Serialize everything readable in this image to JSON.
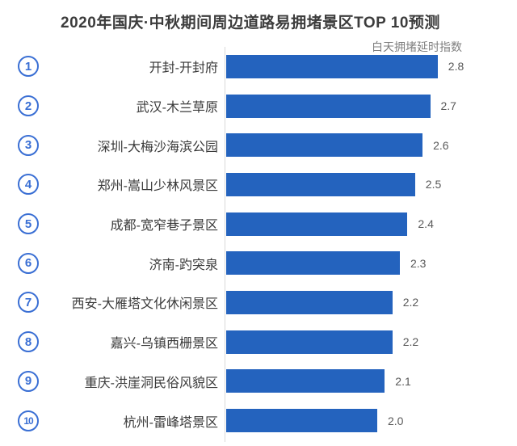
{
  "header": {
    "title": "2020年国庆·中秋期间周边道路易拥堵景区TOP 10预测",
    "value_axis_label": "白天拥堵延时指数"
  },
  "colors": {
    "bar": "#2463be",
    "badge": "#3a6fd4",
    "title_text": "#3c3c3c",
    "label_text": "#3a3a3a",
    "value_text": "#595959",
    "subtitle_text": "#7f7f7f",
    "axis_line": "#d9d9d9"
  },
  "chart_data": {
    "type": "bar",
    "orientation": "horizontal",
    "title": "2020年国庆·中秋期间周边道路易拥堵景区TOP 10预测",
    "value_axis_label": "白天拥堵延时指数",
    "ranks": [
      "1",
      "2",
      "3",
      "4",
      "5",
      "6",
      "7",
      "8",
      "9",
      "10"
    ],
    "categories": [
      "开封-开封府",
      "武汉-木兰草原",
      "深圳-大梅沙海滨公园",
      "郑州-嵩山少林风景区",
      "成都-宽窄巷子景区",
      "济南-趵突泉",
      "西安-大雁塔文化休闲景区",
      "嘉兴-乌镇西栅景区",
      "重庆-洪崖洞民俗风貌区",
      "杭州-雷峰塔景区"
    ],
    "values": [
      2.8,
      2.7,
      2.6,
      2.5,
      2.4,
      2.3,
      2.2,
      2.2,
      2.1,
      2.0
    ],
    "value_decimals": 1,
    "xlim": [
      0,
      3
    ],
    "grid": false,
    "legend": false,
    "data_labels": true
  }
}
